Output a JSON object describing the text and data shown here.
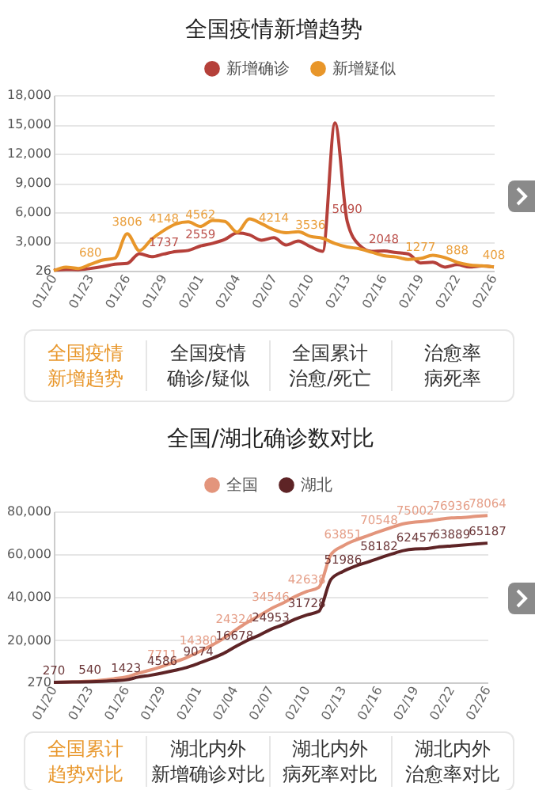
{
  "chart_data": [
    {
      "type": "line",
      "title": "全国疫情新增趋势",
      "legend": "top",
      "grid": "y",
      "marker": "none",
      "line_style": "solid",
      "categories": [
        "01/20",
        null,
        null,
        "01/23",
        null,
        null,
        "01/26",
        null,
        null,
        "01/29",
        null,
        null,
        "02/01",
        null,
        null,
        "02/04",
        null,
        null,
        "02/07",
        null,
        null,
        "02/10",
        null,
        null,
        "02/13",
        null,
        null,
        "02/16",
        null,
        null,
        "02/19",
        null,
        null,
        "02/22",
        null,
        null,
        "02/26"
      ],
      "ylim": [
        26,
        18000
      ],
      "yticks": [
        26,
        {
          "value": 3000,
          "label": "3,000"
        },
        {
          "value": 6000,
          "label": "6,000"
        },
        {
          "value": 9000,
          "label": "9,000"
        },
        {
          "value": 12000,
          "label": "12,000"
        },
        {
          "value": 15000,
          "label": "15,000"
        },
        {
          "value": 18000,
          "label": "18,000"
        }
      ],
      "series": [
        {
          "name": "新增确诊",
          "color": "#b5403a",
          "values": [
            77,
            149,
            131,
            259,
            444,
            688,
            769,
            1771,
            1459,
            1737,
            1982,
            2102,
            2559,
            2829,
            3235,
            3887,
            3694,
            3143,
            3399,
            2656,
            3062,
            2478,
            2015,
            15152,
            5090,
            2641,
            2009,
            2048,
            1886,
            1749,
            820,
            889,
            397,
            648,
            409,
            508,
            406
          ],
          "value_labels": [
            null,
            null,
            null,
            null,
            null,
            null,
            null,
            null,
            null,
            "1737",
            null,
            null,
            "2559",
            null,
            null,
            null,
            null,
            null,
            null,
            null,
            null,
            null,
            null,
            null,
            "5090",
            null,
            null,
            "2048",
            null,
            null,
            null,
            null,
            null,
            null,
            null,
            null,
            null
          ]
        },
        {
          "name": "新增疑似",
          "color": "#e8962a",
          "values": [
            27,
            392,
            257,
            680,
            1118,
            1309,
            3806,
            2077,
            3248,
            4148,
            4812,
            5019,
            4562,
            5173,
            5072,
            3971,
            5328,
            4833,
            4214,
            3916,
            4008,
            3536,
            3342,
            2807,
            2450,
            2277,
            1918,
            1563,
            1432,
            1185,
            1277,
            1614,
            1361,
            888,
            620,
            530,
            408
          ],
          "value_labels": [
            null,
            null,
            null,
            "680",
            null,
            null,
            "3806",
            null,
            null,
            "4148",
            null,
            null,
            "4562",
            null,
            null,
            null,
            null,
            null,
            "4214",
            null,
            null,
            "3536",
            null,
            null,
            null,
            null,
            null,
            null,
            null,
            null,
            "1277",
            null,
            null,
            "888",
            null,
            null,
            "408"
          ]
        }
      ]
    },
    {
      "type": "other",
      "annotations": [
        "全国疫情新增趋势",
        "全国疫情确诊/疑似",
        "全国累计治愈/死亡",
        "治愈率病死率"
      ]
    },
    {
      "type": "line",
      "title": "全国/湖北确诊数对比",
      "legend": "top",
      "grid": "y",
      "marker": "none",
      "line_style": "solid",
      "categories": [
        "01/20",
        null,
        null,
        "01/23",
        null,
        null,
        "01/26",
        null,
        null,
        "01/29",
        null,
        null,
        "02/01",
        null,
        null,
        "02/04",
        null,
        null,
        "02/07",
        null,
        null,
        "02/10",
        null,
        null,
        "02/13",
        null,
        null,
        "02/16",
        null,
        null,
        "02/19",
        null,
        null,
        "02/22",
        null,
        null,
        "02/26"
      ],
      "ylim": [
        270,
        80000
      ],
      "yticks": [
        270,
        {
          "value": 20000,
          "label": "20,000"
        },
        {
          "value": 40000,
          "label": "40,000"
        },
        {
          "value": 60000,
          "label": "60,000"
        },
        {
          "value": 80000,
          "label": "80,000"
        }
      ],
      "series": [
        {
          "name": "全国",
          "color": "#e3957c",
          "values": [
            291,
            440,
            571,
            830,
            1287,
            1975,
            2744,
            4515,
            5974,
            7711,
            9692,
            11791,
            14380,
            17205,
            20438,
            24324,
            28018,
            31161,
            34546,
            37198,
            40171,
            42638,
            44653,
            59804,
            63851,
            66492,
            68500,
            70548,
            72436,
            74185,
            75002,
            75465,
            76288,
            76936,
            77150,
            77658,
            78064
          ],
          "value_labels": [
            null,
            null,
            null,
            null,
            null,
            null,
            null,
            null,
            null,
            "7711",
            null,
            null,
            "14380",
            null,
            null,
            "24324",
            null,
            null,
            "34546",
            null,
            null,
            "42638",
            null,
            null,
            "63851",
            null,
            null,
            "70548",
            null,
            null,
            "75002",
            null,
            null,
            "76936",
            null,
            null,
            "78064"
          ]
        },
        {
          "name": "湖北",
          "color": "#5e2426",
          "values": [
            270,
            375,
            444,
            540,
            729,
            1052,
            1423,
            2714,
            3554,
            4586,
            5806,
            7153,
            9074,
            11177,
            13522,
            16678,
            19665,
            22112,
            24953,
            27100,
            29631,
            31728,
            33366,
            48206,
            51986,
            54406,
            56249,
            58182,
            59989,
            61682,
            62457,
            62662,
            63454,
            63889,
            64287,
            64786,
            65187
          ],
          "value_labels": [
            "270",
            null,
            null,
            "540",
            null,
            null,
            "1423",
            null,
            null,
            "4586",
            null,
            null,
            "9074",
            null,
            null,
            "16678",
            null,
            null,
            "24953",
            null,
            null,
            "31728",
            null,
            null,
            "51986",
            null,
            null,
            "58182",
            null,
            null,
            "62457",
            null,
            null,
            "63889",
            null,
            null,
            "65187"
          ]
        }
      ]
    },
    {
      "type": "other",
      "annotations": [
        "全国累计趋势对比",
        "湖北内外新增确诊对比",
        "湖北内外病死率对比",
        "湖北内外治愈率对比"
      ]
    }
  ]
}
